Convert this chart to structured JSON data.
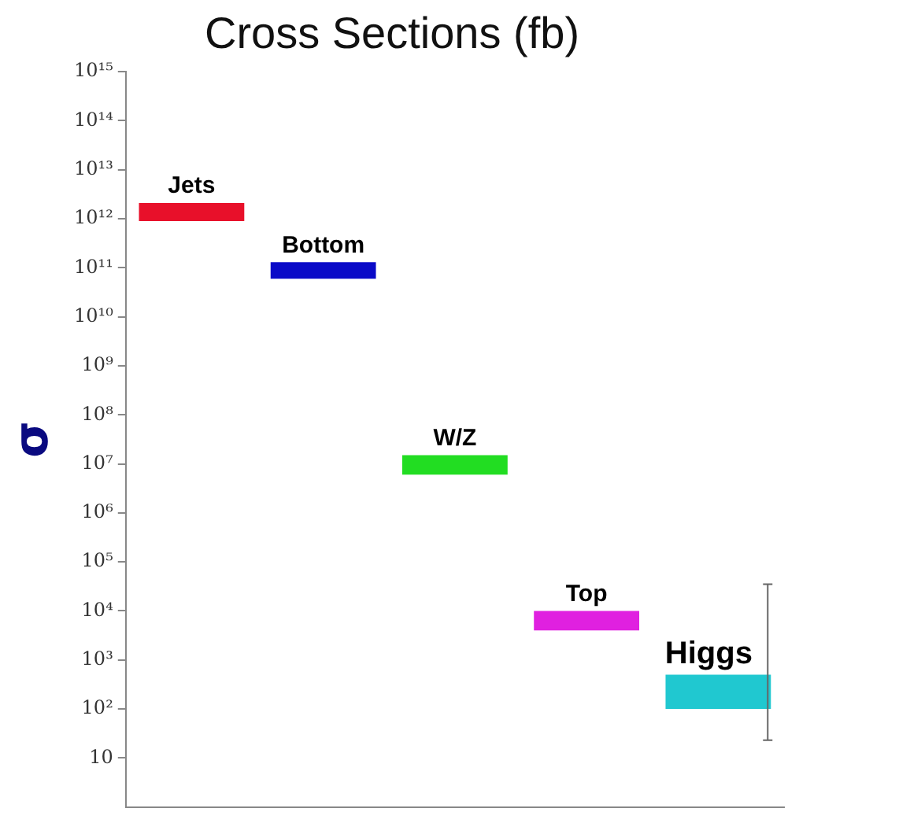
{
  "chart_data": {
    "type": "bar",
    "title": "Cross Sections (fb)",
    "ylabel": "σ",
    "categories": [
      "Jets",
      "Bottom",
      "W/Z",
      "Top",
      "Higgs"
    ],
    "base": [
      900000000000,
      60000000000,
      6000000,
      4000,
      100
    ],
    "values": [
      1200000000000,
      70000000000,
      9000000,
      6000,
      400
    ],
    "colors": [
      "#e8102a",
      "#0a0ac8",
      "#22dd22",
      "#e020e0",
      "#20c8d0"
    ],
    "errors": [
      null,
      null,
      null,
      null,
      [
        23,
        35000
      ]
    ],
    "log": true,
    "ylim": [
      1,
      1000000000000000
    ],
    "yticks": [
      {
        "value": 10,
        "label": "10"
      },
      {
        "value": 100,
        "label": "10²"
      },
      {
        "value": 1000,
        "label": "10³"
      },
      {
        "value": 10000,
        "label": "10⁴"
      },
      {
        "value": 100000,
        "label": "10⁵"
      },
      {
        "value": 1000000,
        "label": "10⁶"
      },
      {
        "value": 10000000,
        "label": "10⁷"
      },
      {
        "value": 100000000,
        "label": "10⁸"
      },
      {
        "value": 1000000000,
        "label": "10⁹"
      },
      {
        "value": 10000000000,
        "label": "10¹⁰"
      },
      {
        "value": 100000000000,
        "label": "10¹¹"
      },
      {
        "value": 1000000000000,
        "label": "10¹²"
      },
      {
        "value": 10000000000000,
        "label": "10¹³"
      },
      {
        "value": 100000000000000,
        "label": "10¹⁴"
      },
      {
        "value": 1000000000000000,
        "label": "10¹⁵"
      }
    ],
    "tick_labels": "y",
    "grid": false,
    "legend": false
  }
}
